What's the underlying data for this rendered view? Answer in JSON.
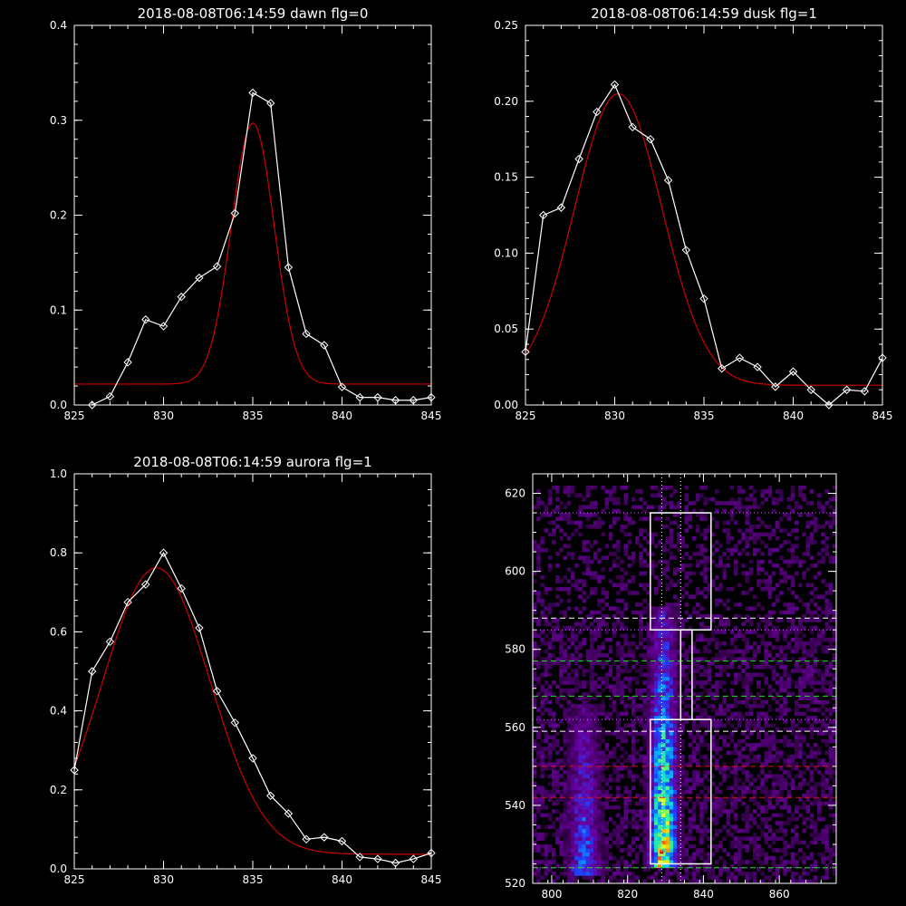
{
  "chart_data": [
    {
      "type": "line",
      "title": "2018-08-08T06:14:59 dawn flg=0",
      "xlim": [
        825,
        845
      ],
      "ylim": [
        0,
        0.4
      ],
      "xticks": [
        825,
        830,
        835,
        840,
        845
      ],
      "yticks": [
        0.0,
        0.1,
        0.2,
        0.3,
        0.4
      ],
      "ytick_labels": [
        "0.0",
        "0.1",
        "0.2",
        "0.3",
        "0.4"
      ],
      "series": [
        {
          "style": "data-diamonds",
          "color": "#ffffff",
          "x": [
            826,
            827,
            828,
            829,
            830,
            831,
            832,
            833,
            834,
            835,
            836,
            837,
            838,
            839,
            840,
            841,
            842,
            843,
            844,
            845
          ],
          "y": [
            0.0,
            0.009,
            0.045,
            0.09,
            0.083,
            0.114,
            0.134,
            0.146,
            0.202,
            0.329,
            0.318,
            0.145,
            0.075,
            0.063,
            0.019,
            0.008,
            0.008,
            0.005,
            0.005,
            0.008
          ]
        },
        {
          "style": "fit-curve",
          "color": "#cc0000",
          "gaussian": {
            "amp": 0.275,
            "center": 835.0,
            "sigma": 1.2,
            "offset": 0.022
          }
        }
      ]
    },
    {
      "type": "line",
      "title": "2018-08-08T06:14:59 dusk flg=1",
      "xlim": [
        825,
        845
      ],
      "ylim": [
        0,
        0.25
      ],
      "xticks": [
        825,
        830,
        835,
        840,
        845
      ],
      "yticks": [
        0.0,
        0.05,
        0.1,
        0.15,
        0.2,
        0.25
      ],
      "ytick_labels": [
        "0.00",
        "0.05",
        "0.10",
        "0.15",
        "0.20",
        "0.25"
      ],
      "series": [
        {
          "style": "data-diamonds",
          "color": "#ffffff",
          "x": [
            825,
            826,
            827,
            828,
            829,
            830,
            831,
            832,
            833,
            834,
            835,
            836,
            837,
            838,
            839,
            840,
            841,
            842,
            843,
            844,
            845
          ],
          "y": [
            0.035,
            0.125,
            0.13,
            0.162,
            0.193,
            0.211,
            0.183,
            0.175,
            0.148,
            0.102,
            0.07,
            0.024,
            0.031,
            0.025,
            0.012,
            0.022,
            0.01,
            0.0,
            0.01,
            0.009,
            0.031
          ]
        },
        {
          "style": "fit-curve",
          "color": "#cc0000",
          "gaussian": {
            "amp": 0.192,
            "center": 830.2,
            "sigma": 2.45,
            "offset": 0.013
          }
        }
      ]
    },
    {
      "type": "line",
      "title": "2018-08-08T06:14:59 aurora flg=1",
      "xlim": [
        825,
        845
      ],
      "ylim": [
        0,
        1.0
      ],
      "xticks": [
        825,
        830,
        835,
        840,
        845
      ],
      "yticks": [
        0.0,
        0.2,
        0.4,
        0.6,
        0.8,
        1.0
      ],
      "ytick_labels": [
        "0.0",
        "0.2",
        "0.4",
        "0.6",
        "0.8",
        "1.0"
      ],
      "series": [
        {
          "style": "data-diamonds",
          "color": "#ffffff",
          "x": [
            825,
            826,
            827,
            828,
            829,
            830,
            831,
            832,
            833,
            834,
            835,
            836,
            837,
            838,
            839,
            840,
            841,
            842,
            843,
            844,
            845
          ],
          "y": [
            0.25,
            0.5,
            0.575,
            0.675,
            0.72,
            0.8,
            0.71,
            0.61,
            0.45,
            0.37,
            0.28,
            0.185,
            0.14,
            0.075,
            0.08,
            0.07,
            0.03,
            0.025,
            0.015,
            0.025,
            0.04
          ]
        },
        {
          "style": "fit-curve",
          "color": "#cc0000",
          "gaussian": {
            "amp": 0.725,
            "center": 829.6,
            "sigma": 3.0,
            "offset": 0.037
          }
        }
      ]
    },
    {
      "type": "heatmap",
      "title": "",
      "xlim": [
        795,
        875
      ],
      "ylim": [
        520,
        625
      ],
      "xticks": [
        800,
        820,
        840,
        860
      ],
      "yticks": [
        520,
        540,
        560,
        580,
        600,
        620
      ],
      "colormap": [
        "#000000",
        "#3a0052",
        "#6a00a0",
        "#2040ff",
        "#00c0ff",
        "#40ff80",
        "#ffff00",
        "#ff0000"
      ],
      "emission_columns": [
        {
          "x_center": 808,
          "width": 8,
          "y_range": [
            522,
            565
          ],
          "peak": 0.55
        },
        {
          "x_center": 829,
          "width": 7,
          "y_range": [
            524,
            590
          ],
          "peak": 1.0
        }
      ],
      "white_boxes": [
        {
          "x": [
            826,
            842
          ],
          "y": [
            585,
            615
          ]
        },
        {
          "x": [
            834,
            837
          ],
          "y": [
            562,
            585
          ]
        },
        {
          "x": [
            826,
            842
          ],
          "y": [
            525,
            562
          ]
        }
      ],
      "dotted_lines_white": {
        "x": [
          829,
          834
        ],
        "y": [
          524,
          562,
          585,
          615
        ]
      },
      "dotted_lines_magenta": {
        "y": [
          615,
          585,
          562,
          524
        ]
      },
      "dashed_white_y": [
        588,
        559
      ],
      "dashed_green_y": [
        577,
        568,
        524
      ],
      "dashed_red_y": [
        550,
        542
      ]
    }
  ]
}
